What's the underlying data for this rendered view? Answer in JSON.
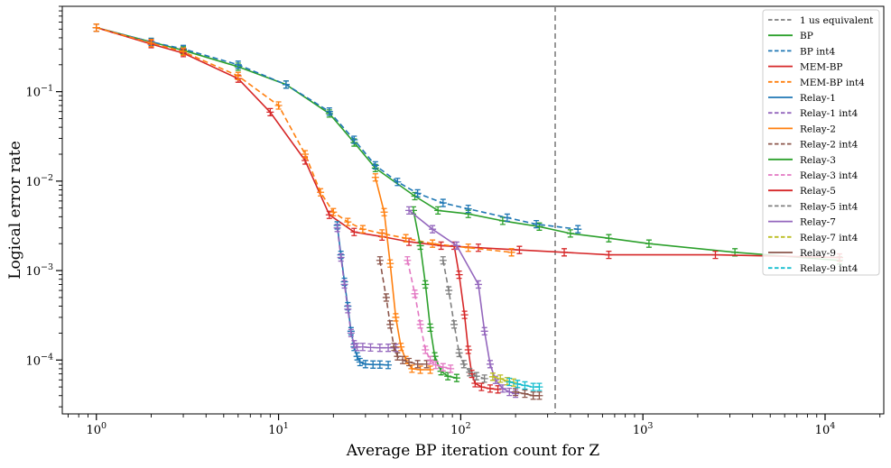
{
  "chart_data": {
    "type": "line",
    "title": "",
    "xlabel": "Average BP iteration count for Z",
    "ylabel": "Logical error rate",
    "xscale": "log",
    "yscale": "log",
    "xlim": [
      0.65,
      21000
    ],
    "ylim": [
      2.5e-05,
      0.9
    ],
    "grid": false,
    "legend_position": "top-right",
    "x_major_ticks": [
      {
        "value": 1,
        "base": "10",
        "exp": "0"
      },
      {
        "value": 10,
        "base": "10",
        "exp": "1"
      },
      {
        "value": 100,
        "base": "10",
        "exp": "2"
      },
      {
        "value": 1000,
        "base": "10",
        "exp": "3"
      },
      {
        "value": 10000,
        "base": "10",
        "exp": "4"
      }
    ],
    "y_major_ticks": [
      {
        "value": 0.1,
        "base": "10",
        "exp": "−1"
      },
      {
        "value": 0.01,
        "base": "10",
        "exp": "−2"
      },
      {
        "value": 0.001,
        "base": "10",
        "exp": "−3"
      },
      {
        "value": 0.0001,
        "base": "10",
        "exp": "−4"
      }
    ],
    "vline": {
      "name": "1 us equivalent",
      "x": 330,
      "color": "#7f7f7f",
      "dash": "dashed"
    },
    "series": [
      {
        "name": "BP",
        "color": "#2ca02c",
        "dash": "solid",
        "x": [
          1,
          2,
          3,
          6,
          11,
          19,
          26,
          34,
          56,
          75,
          110,
          170,
          270,
          400,
          650,
          1080,
          3200,
          12000
        ],
        "y": [
          0.52,
          0.36,
          0.29,
          0.19,
          0.12,
          0.057,
          0.027,
          0.014,
          0.0068,
          0.0047,
          0.0043,
          0.0036,
          0.0031,
          0.0026,
          0.0023,
          0.002,
          0.0016,
          0.0013
        ]
      },
      {
        "name": "BP int4",
        "color": "#1f77b4",
        "dash": "dashed",
        "x": [
          1,
          2,
          3,
          6,
          11,
          19,
          26,
          34,
          45,
          58,
          80,
          110,
          180,
          260,
          440
        ],
        "y": [
          0.52,
          0.36,
          0.3,
          0.2,
          0.12,
          0.06,
          0.029,
          0.015,
          0.0098,
          0.0073,
          0.0057,
          0.0049,
          0.0039,
          0.0033,
          0.0029
        ]
      },
      {
        "name": "MEM-BP",
        "color": "#d62728",
        "dash": "solid",
        "x": [
          1,
          2,
          3,
          6,
          9,
          14,
          19,
          26,
          37,
          52,
          78,
          125,
          210,
          370,
          650,
          2500,
          12000
        ],
        "y": [
          0.52,
          0.34,
          0.27,
          0.14,
          0.059,
          0.017,
          0.0042,
          0.0027,
          0.0024,
          0.0021,
          0.0019,
          0.0018,
          0.0017,
          0.0016,
          0.0015,
          0.0015,
          0.0014
        ]
      },
      {
        "name": "MEM-BP int4",
        "color": "#ff7f0e",
        "dash": "dashed",
        "x": [
          1,
          2,
          3,
          6,
          10,
          14,
          17,
          20,
          24,
          29,
          37,
          50,
          70,
          110,
          190
        ],
        "y": [
          0.52,
          0.35,
          0.28,
          0.15,
          0.07,
          0.02,
          0.0075,
          0.0045,
          0.0035,
          0.0029,
          0.0026,
          0.0023,
          0.002,
          0.0018,
          0.0016
        ]
      },
      {
        "name": "Relay-1",
        "color": "#1f77b4",
        "dash": "solid",
        "x": [
          21,
          22,
          23,
          24,
          25,
          26,
          27,
          28,
          30,
          33,
          36,
          40
        ],
        "y": [
          0.0032,
          0.0015,
          0.00075,
          0.0004,
          0.00021,
          0.00014,
          0.00011,
          9.5e-05,
          9e-05,
          8.9e-05,
          8.9e-05,
          8.8e-05
        ]
      },
      {
        "name": "Relay-1 int4",
        "color": "#9467bd",
        "dash": "dashed",
        "x": [
          21,
          22,
          23,
          24,
          25,
          26,
          27,
          29,
          32,
          36,
          40,
          44
        ],
        "y": [
          0.003,
          0.0014,
          0.0007,
          0.00037,
          0.0002,
          0.00015,
          0.00014,
          0.00014,
          0.000138,
          0.000137,
          0.000137,
          0.000137
        ]
      },
      {
        "name": "Relay-2",
        "color": "#ff7f0e",
        "dash": "solid",
        "x": [
          34,
          38,
          41,
          44,
          47,
          50,
          54,
          60,
          68
        ],
        "y": [
          0.011,
          0.0045,
          0.0012,
          0.0003,
          0.00014,
          0.0001,
          8e-05,
          7.8e-05,
          7.8e-05
        ]
      },
      {
        "name": "Relay-2 int4",
        "color": "#8c564b",
        "dash": "dashed",
        "x": [
          36,
          39,
          41,
          43,
          45,
          48,
          52,
          58,
          65
        ],
        "y": [
          0.0013,
          0.0005,
          0.00025,
          0.00014,
          0.00011,
          0.0001,
          9.5e-05,
          9e-05,
          9e-05
        ]
      },
      {
        "name": "Relay-3",
        "color": "#2ca02c",
        "dash": "solid",
        "x": [
          55,
          60,
          64,
          68,
          72,
          78,
          85,
          95
        ],
        "y": [
          0.0047,
          0.0019,
          0.0007,
          0.00023,
          0.00011,
          7.5e-05,
          6.6e-05,
          6.3e-05
        ]
      },
      {
        "name": "Relay-3 int4",
        "color": "#e377c2",
        "dash": "dashed",
        "x": [
          51,
          56,
          60,
          64,
          68,
          73,
          80,
          88
        ],
        "y": [
          0.0013,
          0.00055,
          0.00025,
          0.00013,
          0.0001,
          8.8e-05,
          8.3e-05,
          8e-05
        ]
      },
      {
        "name": "Relay-5",
        "color": "#d62728",
        "dash": "solid",
        "x": [
          92,
          98,
          105,
          110,
          115,
          120,
          130,
          145,
          160
        ],
        "y": [
          0.0019,
          0.0009,
          0.00032,
          0.00013,
          7e-05,
          5.5e-05,
          5e-05,
          4.8e-05,
          4.7e-05
        ]
      },
      {
        "name": "Relay-5 int4",
        "color": "#7f7f7f",
        "dash": "dashed",
        "x": [
          80,
          86,
          92,
          98,
          104,
          112,
          122,
          135
        ],
        "y": [
          0.0013,
          0.0006,
          0.00025,
          0.00012,
          9e-05,
          7.3e-05,
          6.6e-05,
          6.2e-05
        ]
      },
      {
        "name": "Relay-7",
        "color": "#9467bd",
        "dash": "solid",
        "x": [
          52,
          70,
          95,
          125,
          135,
          145,
          155,
          170,
          185,
          200
        ],
        "y": [
          0.0047,
          0.0029,
          0.0019,
          0.0007,
          0.00021,
          9e-05,
          6e-05,
          4.8e-05,
          4.4e-05,
          4.2e-05
        ]
      },
      {
        "name": "Relay-7 int4",
        "color": "#bcbd22",
        "dash": "dashed",
        "x": [
          150,
          165,
          180,
          195
        ],
        "y": [
          6.5e-05,
          6.2e-05,
          5.8e-05,
          5.6e-05
        ]
      },
      {
        "name": "Relay-9",
        "color": "#8c564b",
        "dash": "solid",
        "x": [
          200,
          225,
          250,
          270
        ],
        "y": [
          4.4e-05,
          4.2e-05,
          4e-05,
          4e-05
        ]
      },
      {
        "name": "Relay-9 int4",
        "color": "#17becf",
        "dash": "dashed",
        "x": [
          185,
          205,
          225,
          250,
          270
        ],
        "y": [
          5.7e-05,
          5.4e-05,
          5.2e-05,
          5e-05,
          5e-05
        ]
      }
    ]
  }
}
